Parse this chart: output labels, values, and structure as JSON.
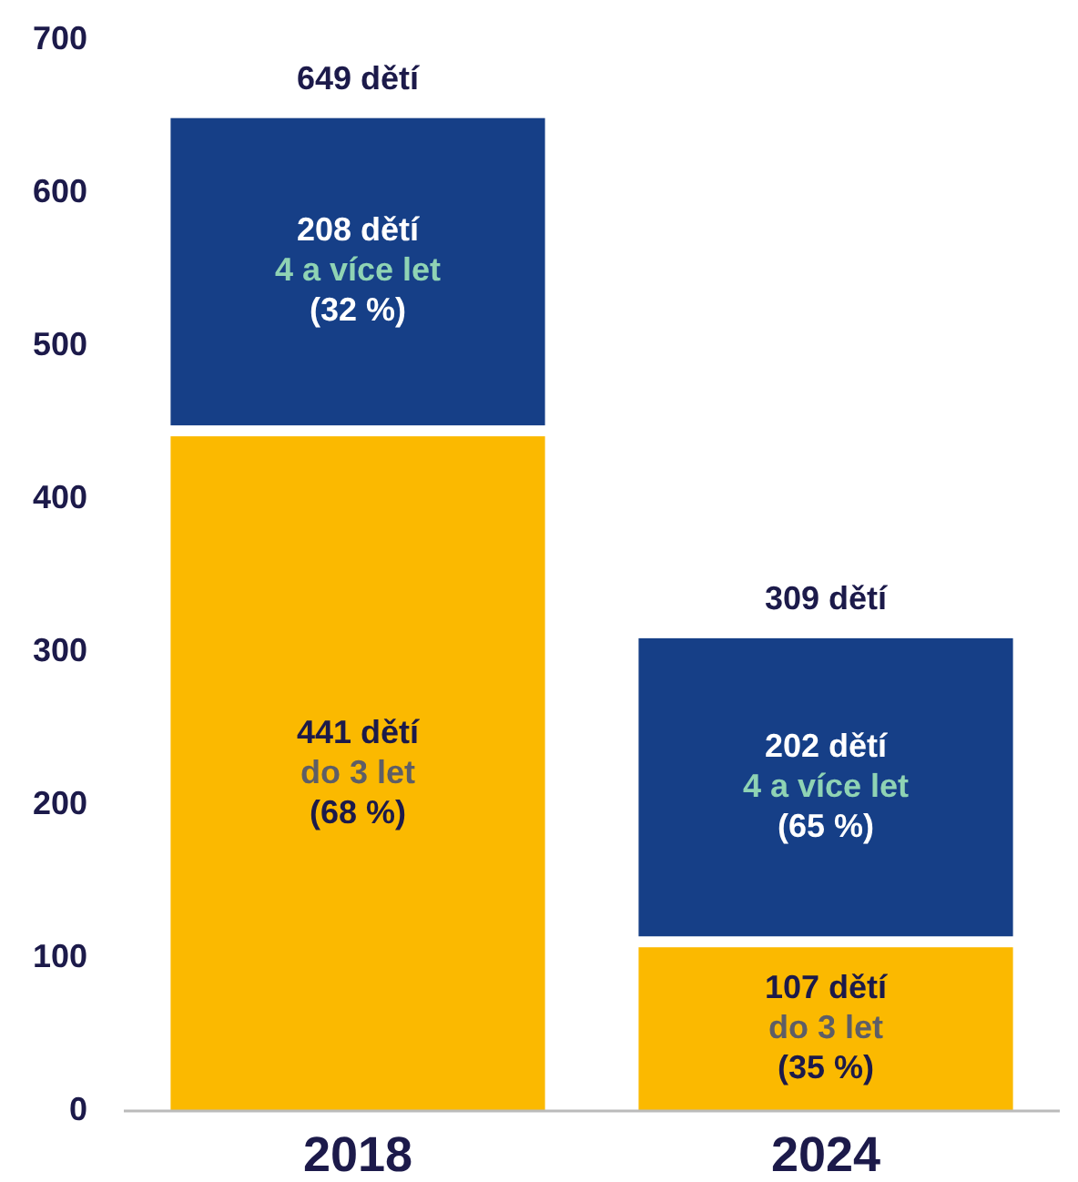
{
  "chart_data": {
    "type": "bar",
    "stacked": true,
    "categories": [
      "2018",
      "2024"
    ],
    "series": [
      {
        "color": "#fbb900",
        "values": [
          441,
          107
        ],
        "value_labels": [
          "441 dětí\ndo 3 let\n(68 %)",
          "107 dětí\ndo 3 let\n(35 %)"
        ]
      },
      {
        "color": "#163f87",
        "values": [
          208,
          202
        ],
        "value_labels": [
          "208 dětí\n4 a více let\n(32 %)",
          "202 dětí\n4 a více let\n(65 %)"
        ]
      }
    ],
    "totals": [
      "649 dětí",
      "309 dětí"
    ],
    "ylim": [
      0,
      700
    ],
    "yticks": [
      0,
      100,
      200,
      300,
      400,
      500,
      600,
      700
    ],
    "grid": false
  }
}
